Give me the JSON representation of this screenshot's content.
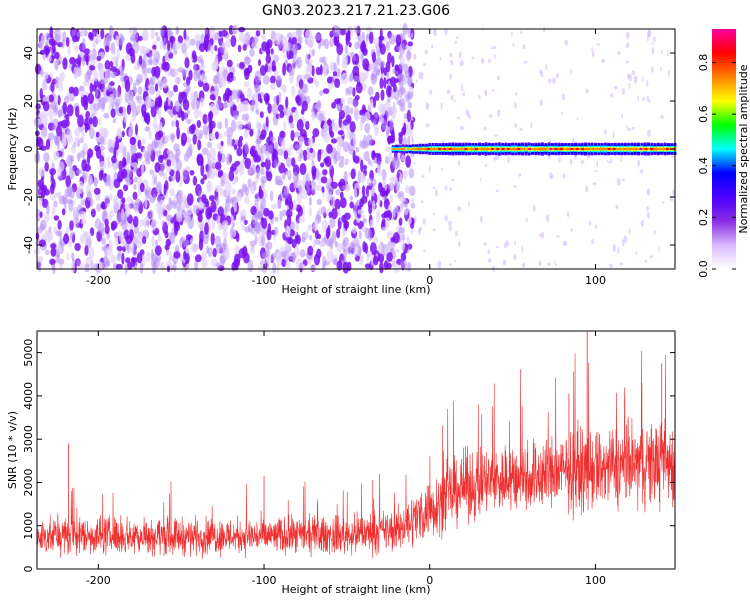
{
  "figure": {
    "title": "GN03.2023.217.21.23.G06"
  },
  "chart_data": [
    {
      "type": "heatmap",
      "description_role": "spectrogram",
      "xlabel": "Height of straight line (km)",
      "ylabel": "Frequency (Hz)",
      "xlim": [
        -237,
        148
      ],
      "ylim": [
        -50,
        50
      ],
      "xticks": [
        -200,
        -100,
        0,
        100
      ],
      "yticks": [
        -40,
        -20,
        0,
        20,
        40
      ],
      "colorbar": {
        "label": "Normalized spectral amplitude",
        "range": [
          0.0,
          0.93
        ],
        "ticks": [
          0.0,
          0.2,
          0.4,
          0.6,
          0.8
        ],
        "colormap": [
          "#ffffff",
          "#d8b8ff",
          "#8a2be2",
          "#4b00ff",
          "#0000ff",
          "#00ffff",
          "#00ff00",
          "#ffff00",
          "#ff8000",
          "#ff0000",
          "#ff00a0"
        ]
      },
      "features": {
        "noise_region_x": [
          -237,
          -20
        ],
        "signal_start_x": -22,
        "signal_frequency_hz": 0,
        "signal_peak_amplitude": 0.9
      }
    },
    {
      "type": "line",
      "xlabel": "Height of straight line (km)",
      "ylabel": "SNR (10 * v/v)",
      "xlim": [
        -237,
        148
      ],
      "ylim": [
        0,
        5500
      ],
      "xticks": [
        -200,
        -100,
        0,
        100
      ],
      "yticks": [
        0,
        1000,
        2000,
        3000,
        4000,
        5000
      ],
      "color": "#f03030",
      "envelope": {
        "x": [
          -237,
          -200,
          -150,
          -100,
          -50,
          -20,
          0,
          20,
          50,
          80,
          100,
          120,
          148
        ],
        "mean": [
          750,
          780,
          760,
          760,
          780,
          900,
          1400,
          1900,
          2100,
          2250,
          2300,
          2400,
          2500
        ],
        "spread": [
          480,
          500,
          480,
          480,
          500,
          550,
          800,
          900,
          950,
          1000,
          1050,
          1100,
          1150
        ]
      },
      "spikes": [
        {
          "x": -218,
          "y": 2900
        },
        {
          "x": -100,
          "y": 2150
        },
        {
          "x": 95,
          "y": 5480
        },
        {
          "x": 140,
          "y": 4750
        },
        {
          "x": 128,
          "y": 4300
        },
        {
          "x": 84,
          "y": 4050
        }
      ]
    }
  ]
}
